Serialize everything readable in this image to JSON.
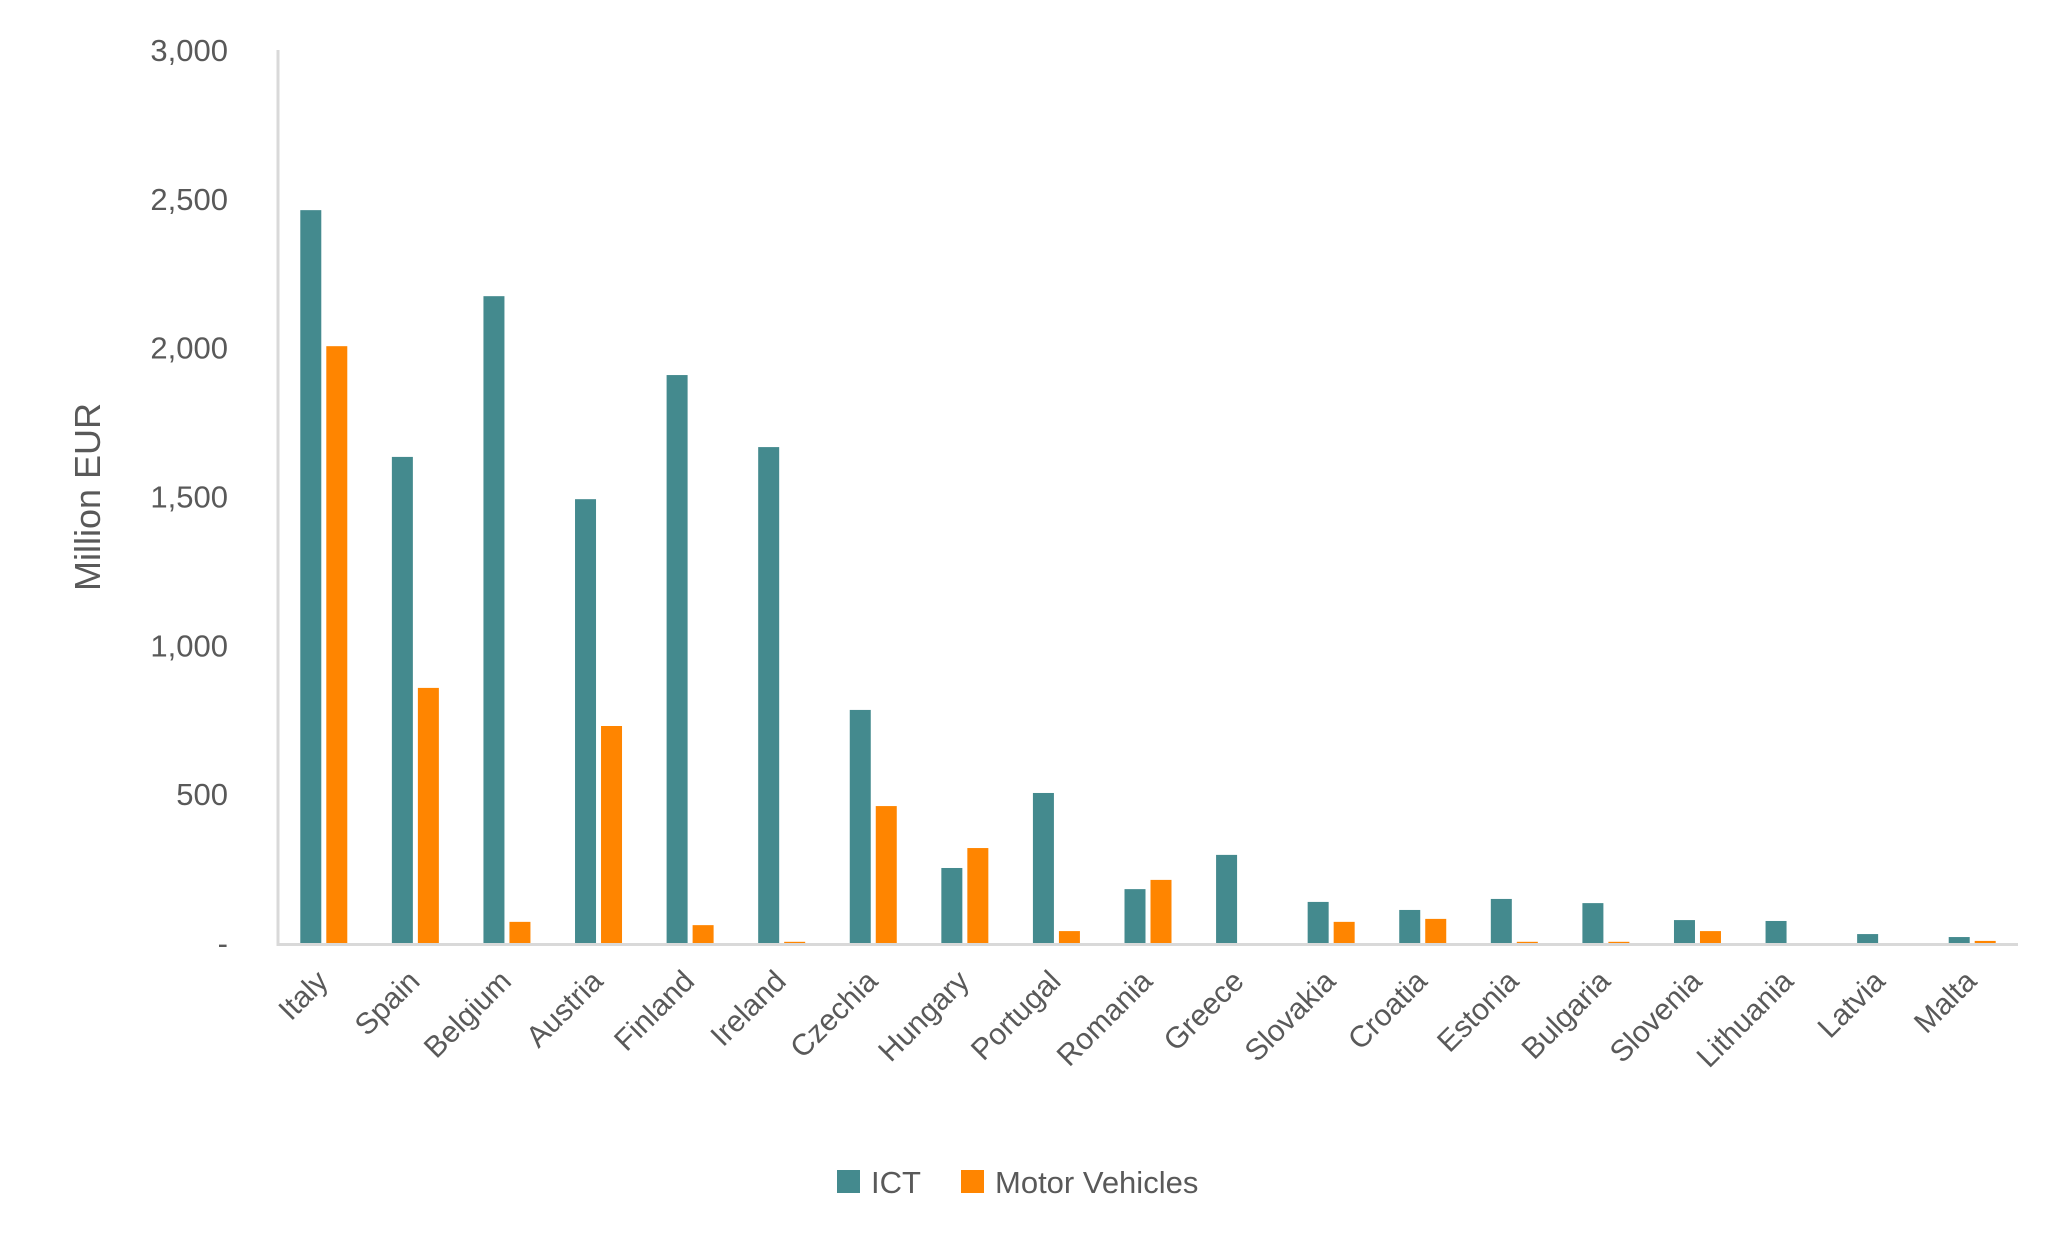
{
  "chart_data": {
    "type": "bar",
    "title": "",
    "xlabel": "",
    "ylabel": "Million EUR",
    "ylim": [
      0,
      3000
    ],
    "yticks": [
      0,
      500,
      1000,
      1500,
      2000,
      2500,
      3000
    ],
    "ytick_labels": [
      "-",
      "500",
      "1,000",
      "1,500",
      "2,000",
      "2,500",
      "3,000"
    ],
    "grid": false,
    "legend_position": "bottom-center",
    "categories": [
      "Italy",
      "Spain",
      "Belgium",
      "Austria",
      "Finland",
      "Ireland",
      "Czechia",
      "Hungary",
      "Portugal",
      "Romania",
      "Greece",
      "Slovakia",
      "Croatia",
      "Estonia",
      "Bulgaria",
      "Slovenia",
      "Lithuania",
      "Latvia",
      "Malta"
    ],
    "series": [
      {
        "name": "ICT",
        "color": "#448A8E",
        "values": [
          2462,
          1633,
          2173,
          1491,
          1908,
          1666,
          783,
          252,
          504,
          181,
          296,
          138,
          111,
          148,
          134,
          77,
          74,
          30,
          20
        ]
      },
      {
        "name": "Motor Vehicles",
        "color": "#FF8500",
        "values": [
          2005,
          857,
          71,
          729,
          60,
          4,
          460,
          319,
          40,
          212,
          0,
          71,
          81,
          4,
          4,
          40,
          0,
          0,
          7
        ]
      }
    ]
  },
  "colors": {
    "axis": "#D9D9D9",
    "text": "#595959"
  }
}
